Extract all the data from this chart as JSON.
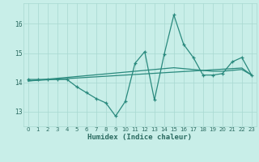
{
  "xlabel": "Humidex (Indice chaleur)",
  "x": [
    0,
    1,
    2,
    3,
    4,
    5,
    6,
    7,
    8,
    9,
    10,
    11,
    12,
    13,
    14,
    15,
    16,
    17,
    18,
    19,
    20,
    21,
    22,
    23
  ],
  "y_main": [
    14.1,
    14.1,
    14.1,
    14.1,
    14.1,
    13.85,
    13.65,
    13.45,
    13.3,
    12.85,
    13.35,
    14.65,
    15.05,
    13.4,
    14.95,
    16.3,
    15.3,
    14.85,
    14.25,
    14.25,
    14.3,
    14.7,
    14.85,
    14.25
  ],
  "y_trend1": [
    14.05,
    14.07,
    14.09,
    14.11,
    14.13,
    14.15,
    14.17,
    14.19,
    14.21,
    14.23,
    14.25,
    14.27,
    14.29,
    14.31,
    14.33,
    14.35,
    14.37,
    14.39,
    14.41,
    14.43,
    14.45,
    14.47,
    14.49,
    14.25
  ],
  "y_trend2": [
    14.05,
    14.08,
    14.11,
    14.14,
    14.17,
    14.2,
    14.23,
    14.26,
    14.29,
    14.32,
    14.35,
    14.38,
    14.41,
    14.44,
    14.47,
    14.5,
    14.47,
    14.44,
    14.41,
    14.38,
    14.38,
    14.41,
    14.44,
    14.25
  ],
  "line_color": "#2a8a7e",
  "bg_color": "#c8eee8",
  "grid_color": "#a8d8d0",
  "text_color": "#2a6a60",
  "ylim": [
    12.5,
    16.7
  ],
  "yticks": [
    13,
    14,
    15,
    16
  ],
  "xticks": [
    0,
    1,
    2,
    3,
    4,
    5,
    6,
    7,
    8,
    9,
    10,
    11,
    12,
    13,
    14,
    15,
    16,
    17,
    18,
    19,
    20,
    21,
    22,
    23
  ]
}
